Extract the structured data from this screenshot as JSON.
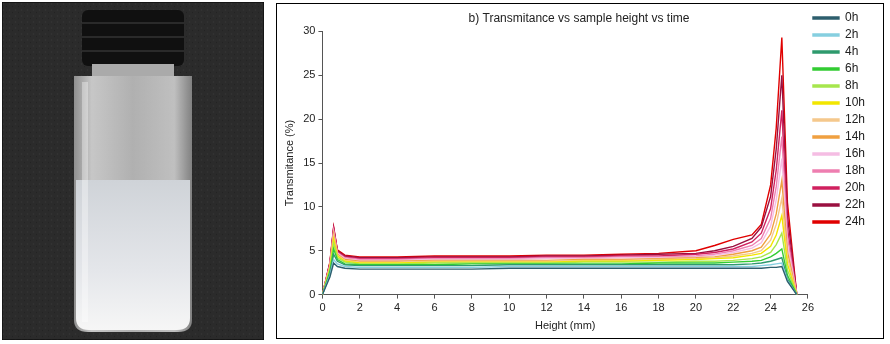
{
  "chart_data": {
    "type": "line",
    "title": "b) Transmitance vs sample height vs time",
    "x_label": "Height (mm)",
    "y_label": "Transmitance (%)",
    "xlim": [
      0,
      26
    ],
    "xticks": [
      0,
      2,
      4,
      6,
      8,
      10,
      12,
      14,
      16,
      18,
      20,
      22,
      24,
      26
    ],
    "ylim": [
      0,
      30
    ],
    "yticks": [
      0,
      5,
      10,
      15,
      20,
      25,
      30
    ],
    "grid": false,
    "legend": "right",
    "x": [
      0,
      0.4,
      0.6,
      0.8,
      1.2,
      2,
      4,
      6,
      8,
      10,
      12,
      14,
      16,
      18,
      20,
      21,
      22,
      23,
      23.5,
      24,
      24.3,
      24.6,
      24.9,
      25.4
    ],
    "series": [
      {
        "name": "0h",
        "color": "#2e5f6e",
        "values": [
          0,
          2.0,
          3.6,
          3.2,
          3.0,
          2.9,
          2.9,
          2.9,
          2.9,
          3.0,
          3.0,
          3.0,
          3.0,
          3.0,
          3.0,
          3.0,
          3.0,
          3.0,
          3.0,
          3.1,
          3.1,
          3.2,
          1.5,
          0
        ]
      },
      {
        "name": "2h",
        "color": "#86cfe0",
        "values": [
          0,
          2.2,
          4.0,
          3.5,
          3.2,
          3.1,
          3.1,
          3.1,
          3.1,
          3.2,
          3.2,
          3.2,
          3.2,
          3.2,
          3.2,
          3.2,
          3.2,
          3.2,
          3.3,
          3.4,
          3.5,
          3.6,
          1.6,
          0
        ]
      },
      {
        "name": "4h",
        "color": "#2f9a6e",
        "values": [
          0,
          2.4,
          4.6,
          3.8,
          3.4,
          3.3,
          3.3,
          3.3,
          3.3,
          3.4,
          3.4,
          3.4,
          3.4,
          3.4,
          3.4,
          3.4,
          3.4,
          3.5,
          3.6,
          3.8,
          4.0,
          4.2,
          1.8,
          0
        ]
      },
      {
        "name": "6h",
        "color": "#33cc33",
        "values": [
          0,
          2.6,
          5.2,
          4.0,
          3.5,
          3.4,
          3.4,
          3.4,
          3.5,
          3.5,
          3.5,
          3.5,
          3.5,
          3.6,
          3.6,
          3.6,
          3.7,
          3.8,
          3.9,
          4.3,
          4.7,
          5.2,
          2.2,
          0
        ]
      },
      {
        "name": "8h",
        "color": "#a6e64d",
        "values": [
          0,
          2.8,
          5.8,
          4.2,
          3.7,
          3.5,
          3.5,
          3.6,
          3.6,
          3.6,
          3.6,
          3.7,
          3.7,
          3.7,
          3.8,
          3.8,
          3.9,
          4.1,
          4.3,
          4.8,
          5.7,
          7.0,
          2.8,
          0
        ]
      },
      {
        "name": "10h",
        "color": "#f2e600",
        "values": [
          0,
          3.0,
          6.3,
          4.4,
          3.8,
          3.6,
          3.6,
          3.7,
          3.7,
          3.7,
          3.7,
          3.8,
          3.8,
          3.9,
          4.0,
          4.1,
          4.2,
          4.5,
          4.7,
          5.5,
          6.8,
          9.0,
          3.5,
          0
        ]
      },
      {
        "name": "12h",
        "color": "#f5c88c",
        "values": [
          0,
          3.1,
          6.6,
          4.5,
          3.9,
          3.7,
          3.7,
          3.8,
          3.8,
          3.8,
          3.8,
          3.9,
          3.9,
          4.0,
          4.1,
          4.2,
          4.4,
          4.7,
          5.0,
          6.2,
          8.0,
          11.0,
          4.2,
          0
        ]
      },
      {
        "name": "14h",
        "color": "#f0a040",
        "values": [
          0,
          3.2,
          6.9,
          4.6,
          4.0,
          3.8,
          3.8,
          3.9,
          3.9,
          3.9,
          3.9,
          4.0,
          4.0,
          4.1,
          4.2,
          4.3,
          4.6,
          5.0,
          5.4,
          6.9,
          9.2,
          13.0,
          4.9,
          0
        ]
      },
      {
        "name": "16h",
        "color": "#f5bde3",
        "values": [
          0,
          3.3,
          7.1,
          4.7,
          4.1,
          3.9,
          3.9,
          4.0,
          4.0,
          4.0,
          4.1,
          4.1,
          4.2,
          4.2,
          4.3,
          4.5,
          4.8,
          5.3,
          5.9,
          7.8,
          10.8,
          15.5,
          5.7,
          0
        ]
      },
      {
        "name": "18h",
        "color": "#ee7fb0",
        "values": [
          0,
          3.4,
          7.3,
          4.8,
          4.2,
          4.0,
          4.0,
          4.1,
          4.1,
          4.1,
          4.2,
          4.2,
          4.3,
          4.3,
          4.4,
          4.6,
          5.0,
          5.6,
          6.4,
          8.7,
          12.3,
          18.0,
          6.6,
          0
        ]
      },
      {
        "name": "20h",
        "color": "#d0215f",
        "values": [
          0,
          3.5,
          7.5,
          4.9,
          4.3,
          4.1,
          4.1,
          4.2,
          4.2,
          4.2,
          4.3,
          4.3,
          4.4,
          4.4,
          4.6,
          4.8,
          5.2,
          6.0,
          7.0,
          9.8,
          14.2,
          21.0,
          7.6,
          0
        ]
      },
      {
        "name": "22h",
        "color": "#9a1040",
        "values": [
          0,
          3.6,
          7.6,
          5.0,
          4.4,
          4.2,
          4.2,
          4.3,
          4.3,
          4.3,
          4.4,
          4.4,
          4.5,
          4.6,
          4.7,
          5.0,
          5.5,
          6.4,
          7.7,
          11.2,
          16.6,
          25.0,
          9.0,
          0
        ]
      },
      {
        "name": "24h",
        "color": "#e00000",
        "values": [
          0,
          3.7,
          7.7,
          5.1,
          4.5,
          4.3,
          4.3,
          4.4,
          4.4,
          4.4,
          4.5,
          4.5,
          4.6,
          4.7,
          5.0,
          5.6,
          6.3,
          6.8,
          8.0,
          12.5,
          19.0,
          29.3,
          10.5,
          0
        ]
      }
    ]
  }
}
